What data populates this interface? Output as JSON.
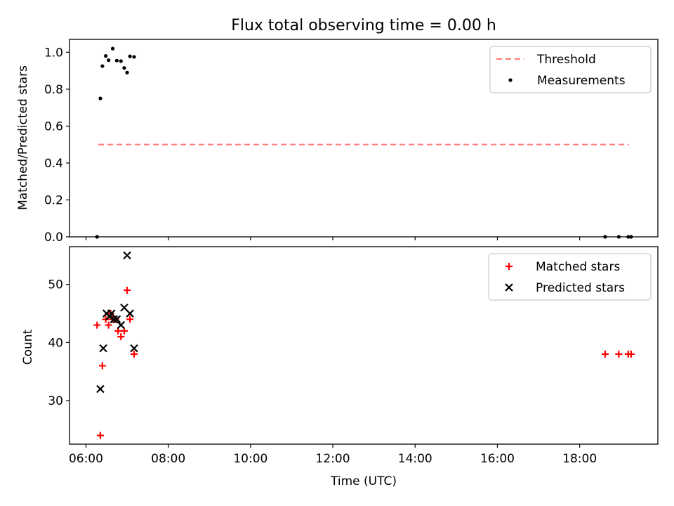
{
  "figure": {
    "title": "Flux total observing time = 0.00 h",
    "xlabel": "Time (UTC)"
  },
  "chart_data": [
    {
      "type": "scatter",
      "panel": "top",
      "ylabel": "Matched/Predicted stars",
      "xlim_hours": [
        5.6,
        19.9
      ],
      "ylim": [
        0,
        1.07
      ],
      "yticks": [
        "0.0",
        "0.2",
        "0.4",
        "0.6",
        "0.8",
        "1.0"
      ],
      "legend_position": "upper-right",
      "series": [
        {
          "name": "Threshold",
          "kind": "dashed-line",
          "color": "#ff7f7f",
          "x": [
            6.3,
            19.2
          ],
          "y": [
            0.5,
            0.5
          ]
        },
        {
          "name": "Measurements",
          "kind": "dot",
          "color": "#000000",
          "x": [
            6.27,
            6.35,
            6.4,
            6.48,
            6.55,
            6.65,
            6.75,
            6.85,
            6.93,
            7.0,
            7.07,
            7.17,
            18.62,
            18.95,
            19.18,
            19.25
          ],
          "y": [
            0.0,
            0.75,
            0.925,
            0.98,
            0.957,
            1.02,
            0.955,
            0.952,
            0.915,
            0.89,
            0.978,
            0.975,
            0.0,
            0.0,
            0.0,
            0.0
          ]
        }
      ]
    },
    {
      "type": "scatter",
      "panel": "bottom",
      "ylabel": "Count",
      "xlim_hours": [
        5.6,
        19.9
      ],
      "ylim": [
        22.5,
        56.5
      ],
      "yticks": [
        "30",
        "40",
        "50"
      ],
      "xticks": [
        "06:00",
        "08:00",
        "10:00",
        "12:00",
        "14:00",
        "16:00",
        "18:00"
      ],
      "legend_position": "upper-right",
      "series": [
        {
          "name": "Matched stars",
          "marker": "plus",
          "color": "#ff0000",
          "x": [
            6.27,
            6.35,
            6.4,
            6.48,
            6.55,
            6.6,
            6.65,
            6.72,
            6.78,
            6.85,
            6.93,
            7.0,
            7.07,
            7.17,
            18.62,
            18.95,
            19.18,
            19.25
          ],
          "y": [
            43,
            24,
            36,
            44,
            43,
            45,
            44,
            44,
            42,
            41,
            42,
            49,
            44,
            38,
            38,
            38,
            38,
            38
          ]
        },
        {
          "name": "Predicted stars",
          "marker": "x",
          "color": "#000000",
          "x": [
            6.35,
            6.42,
            6.5,
            6.57,
            6.62,
            6.68,
            6.75,
            6.85,
            6.93,
            7.0,
            7.07,
            7.17
          ],
          "y": [
            32,
            39,
            45,
            44.5,
            45,
            44,
            44,
            43,
            46,
            55,
            45,
            39
          ]
        }
      ]
    }
  ]
}
